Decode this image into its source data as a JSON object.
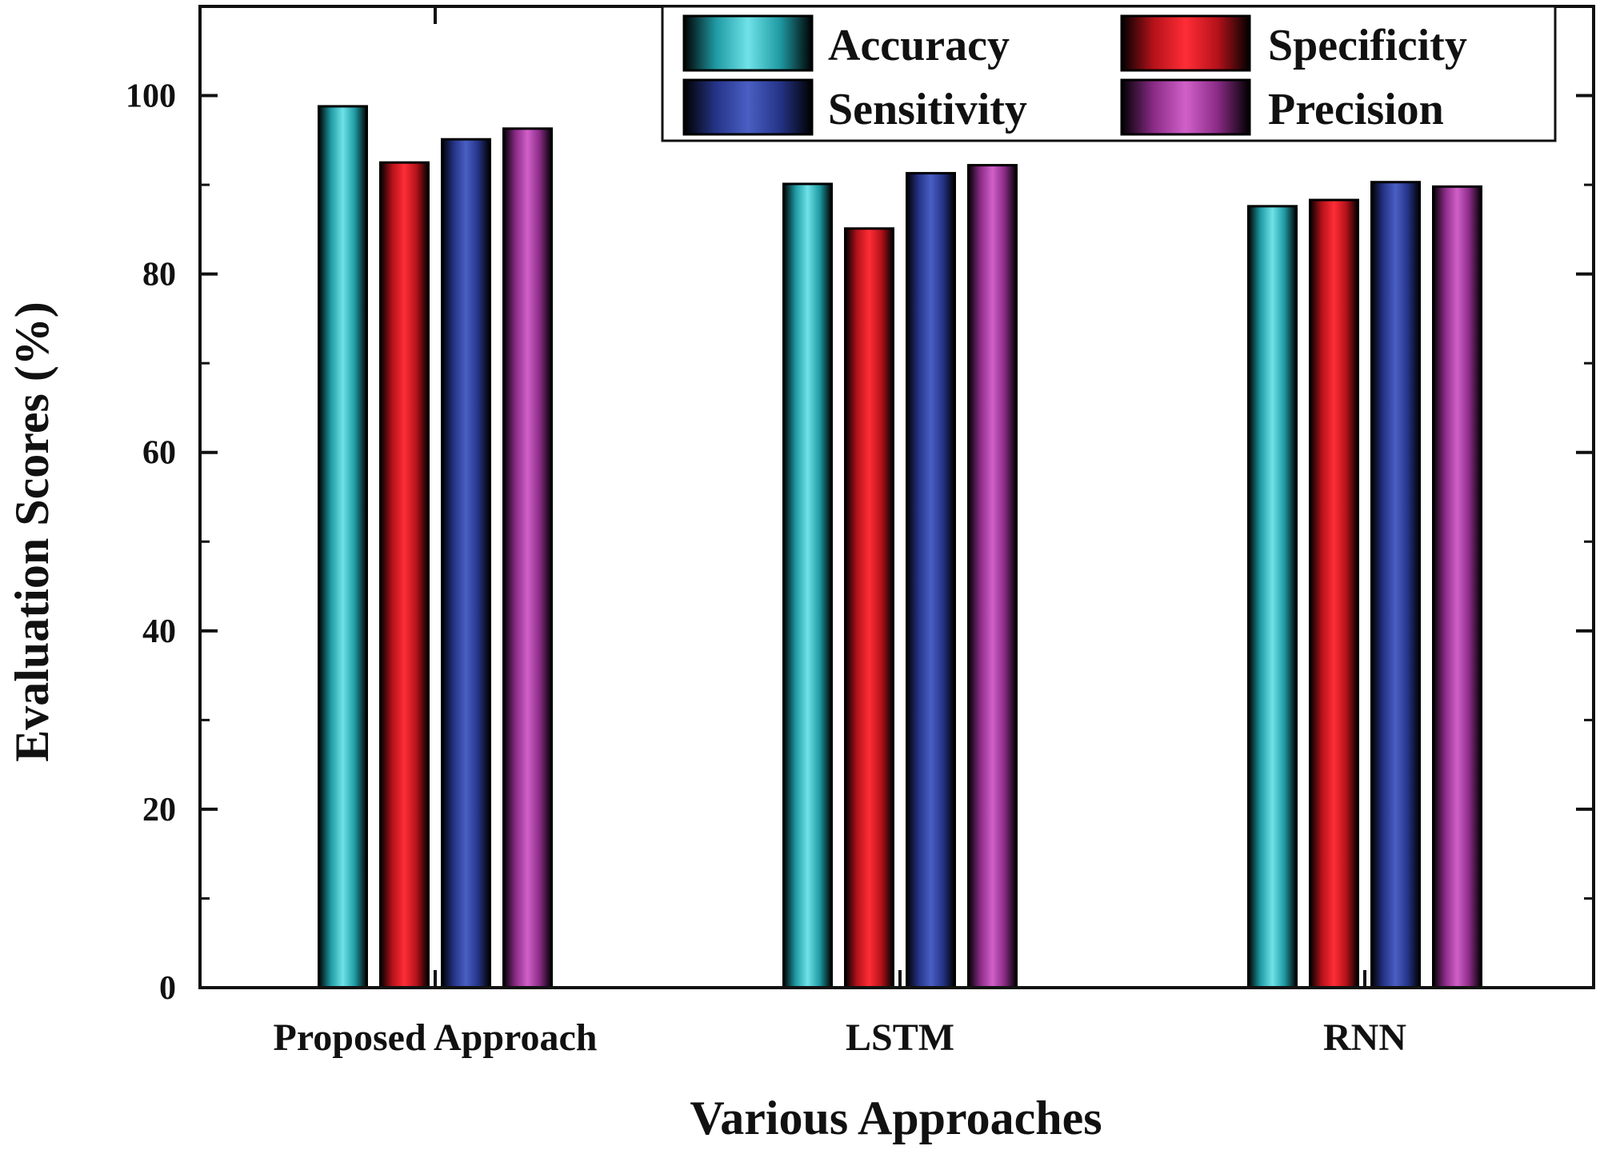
{
  "chart_data": {
    "type": "bar",
    "categories": [
      "Proposed Approach",
      "LSTM",
      "RNN"
    ],
    "series": [
      {
        "name": "Accuracy",
        "values": [
          98.8,
          90.1,
          87.6
        ],
        "color": "#3fc4cc"
      },
      {
        "name": "Specificity",
        "values": [
          92.5,
          85.1,
          88.3
        ],
        "color": "#e8202a"
      },
      {
        "name": "Sensitivity",
        "values": [
          95.1,
          91.3,
          90.3
        ],
        "color": "#3347a6"
      },
      {
        "name": "Precision",
        "values": [
          96.3,
          92.2,
          89.8
        ],
        "color": "#b245ab"
      }
    ],
    "xlabel": "Various Approaches",
    "ylabel": "Evaluation Scores (%)",
    "ylim": [
      0,
      110
    ],
    "yticks": [
      0,
      20,
      40,
      60,
      80,
      100
    ],
    "legend": "top-right",
    "grid": false
  }
}
